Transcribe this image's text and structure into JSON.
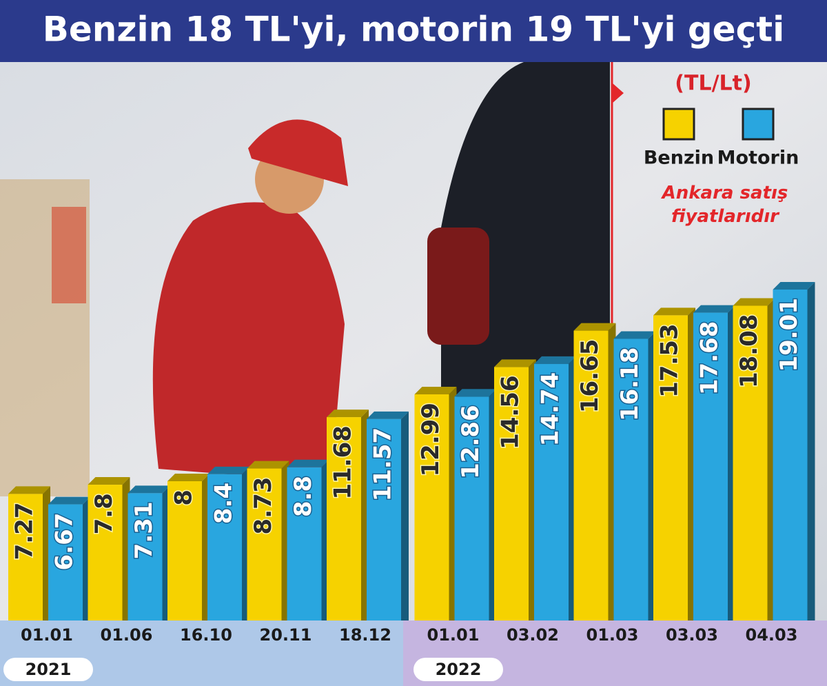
{
  "chart_data": {
    "type": "bar",
    "title": "Benzin 18 TL'yi, motorin 19 TL'yi geçti",
    "unit": "(TL/Lt)",
    "note": "Ankara satış fiyatlarıdır",
    "years": [
      "2021",
      "2022"
    ],
    "categories": [
      "01.01",
      "01.06",
      "16.10",
      "20.11",
      "18.12",
      "01.01",
      "03.02",
      "01.03",
      "03.03",
      "04.03"
    ],
    "series": [
      {
        "name": "Benzin",
        "color": "#f6d200",
        "values": [
          7.27,
          7.8,
          8,
          8.73,
          11.68,
          12.99,
          14.56,
          16.65,
          17.53,
          18.08
        ]
      },
      {
        "name": "Motorin",
        "color": "#29a6df",
        "values": [
          6.67,
          7.31,
          8.4,
          8.8,
          11.57,
          12.86,
          14.74,
          16.18,
          17.68,
          19.01
        ]
      }
    ]
  }
}
